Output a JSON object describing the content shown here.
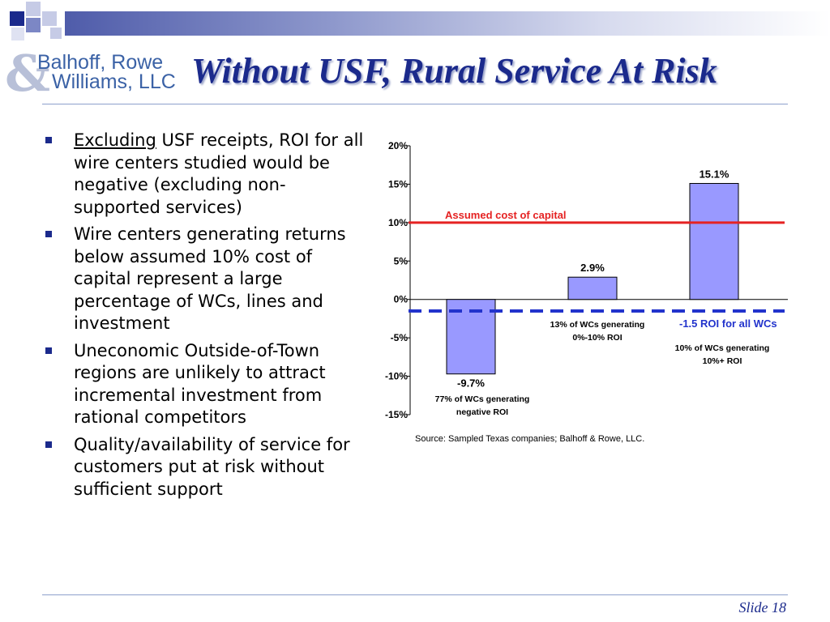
{
  "header": {
    "logo_line1": "Balhoff, Rowe",
    "logo_line2": "Williams, LLC",
    "logo_amp": "&",
    "title": "Without USF, Rural Service At Risk"
  },
  "bullets": [
    {
      "underlined": "Excluding",
      "text": " USF receipts, ROI for all wire centers studied would be negative (excluding non-supported services)"
    },
    {
      "underlined": "",
      "text": "Wire centers generating returns below assumed 10% cost of capital represent a large percentage of WCs, lines and investment"
    },
    {
      "underlined": "",
      "text": "Uneconomic Outside-of-Town regions are unlikely to attract incremental investment from rational competitors"
    },
    {
      "underlined": "",
      "text": "Quality/availability of service for customers put at risk without sufficient support"
    }
  ],
  "chart_data": {
    "type": "bar",
    "categories": [
      "77% of WCs generating negative ROI",
      "13% of WCs generating 0%-10% ROI",
      "10% of WCs generating 10%+ ROI"
    ],
    "category_lines": [
      [
        "77% of WCs generating",
        "negative ROI"
      ],
      [
        "13% of WCs generating",
        "0%-10% ROI"
      ],
      [
        "10% of WCs generating",
        "10%+ ROI"
      ]
    ],
    "values": [
      -9.7,
      2.9,
      15.1
    ],
    "value_labels": [
      "-9.7%",
      "2.9%",
      "15.1%"
    ],
    "ylim": [
      -15,
      20
    ],
    "yticks": [
      20,
      15,
      10,
      5,
      0,
      -5,
      -10,
      -15
    ],
    "ytick_labels": [
      "20%",
      "15%",
      "10%",
      "5%",
      "0%",
      "-5%",
      "-10%",
      "-15%"
    ],
    "bar_color": "#9999ff",
    "reference_lines": [
      {
        "value": 10,
        "label": "Assumed cost of capital",
        "color": "#e52222",
        "style": "solid"
      },
      {
        "value": -1.5,
        "label": "-1.5 ROI for all WCs",
        "color": "#2233cc",
        "style": "dashed"
      }
    ],
    "source": "Source:  Sampled Texas companies; Balhoff & Rowe, LLC."
  },
  "footer": {
    "slide_label": "Slide 18"
  },
  "colors": {
    "title": "#1b2a8c",
    "accent": "#3b62a6"
  }
}
